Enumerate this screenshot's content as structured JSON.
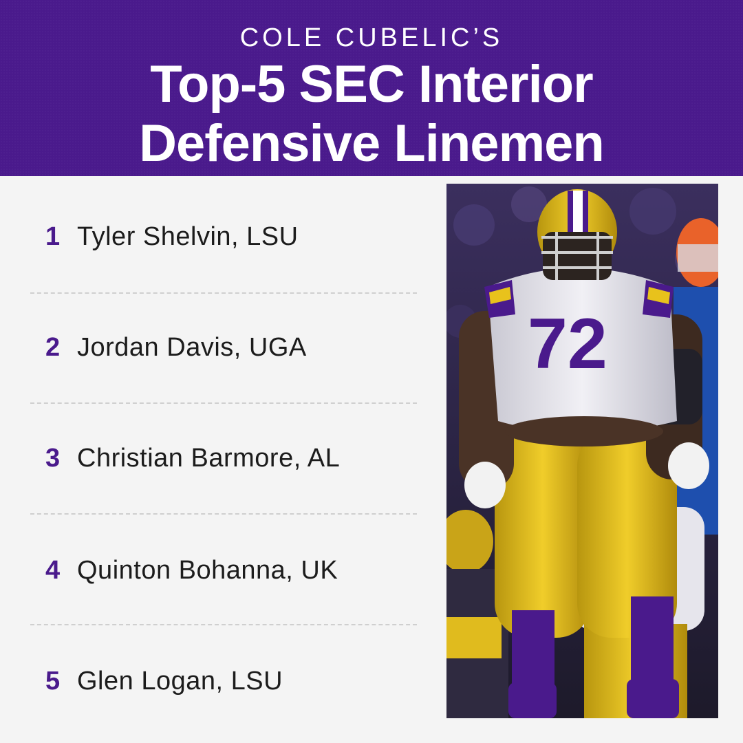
{
  "header": {
    "kicker": "COLE CUBELIC’S",
    "title_line1": "Top-5 SEC Interior",
    "title_line2": "Defensive Linemen"
  },
  "rankings": [
    {
      "rank": "1",
      "name": "Tyler Shelvin, LSU"
    },
    {
      "rank": "2",
      "name": "Jordan Davis, UGA"
    },
    {
      "rank": "3",
      "name": "Christian Barmore, AL"
    },
    {
      "rank": "4",
      "name": "Quinton Bohanna, UK"
    },
    {
      "rank": "5",
      "name": "Glen Logan, LSU"
    }
  ],
  "photo": {
    "jersey_number": "72",
    "colors": {
      "purple": "#4a1a8c",
      "gold": "#e8c21c",
      "jersey_white": "#ecebf0",
      "opponent_orange": "#e9622a",
      "opponent_blue": "#1e4fae"
    }
  }
}
